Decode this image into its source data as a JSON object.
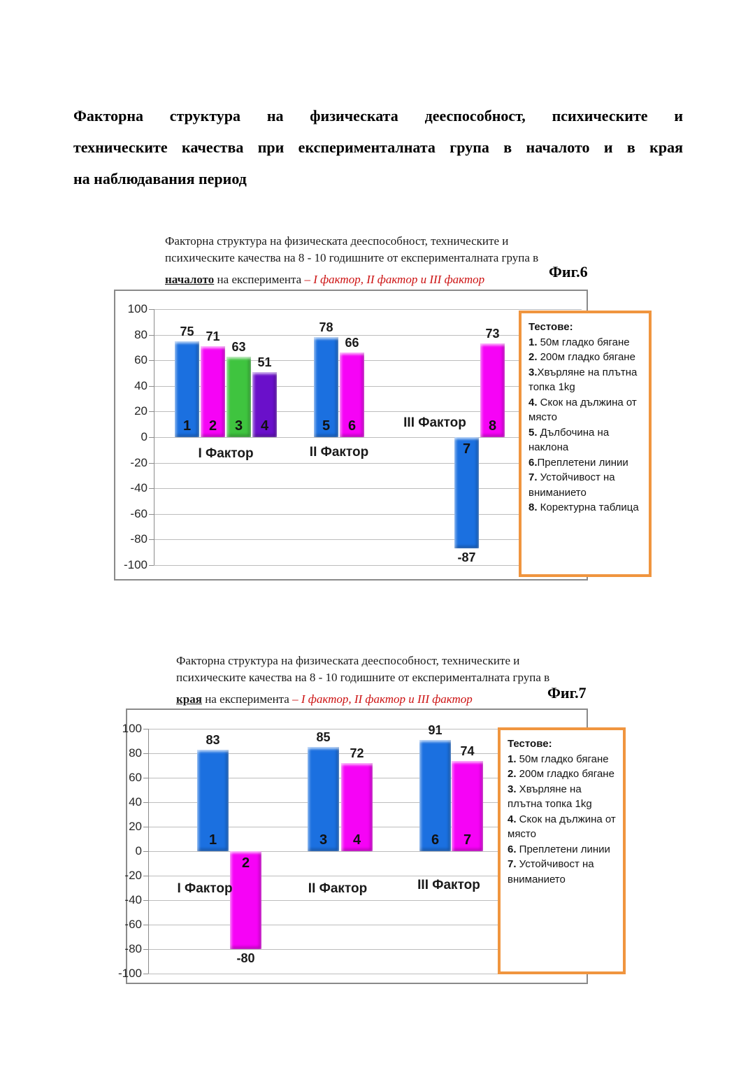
{
  "document": {
    "title_lines": [
      "Факторна структура на физическата дееспособност, психическите и",
      "техническите качества при експерименталната група в началото и в края",
      "на наблюдавания  период"
    ]
  },
  "fig6": {
    "caption": {
      "line1": "Факторна структура на физическата дееспособност, техническите и",
      "line2": "психическите качества на 8 - 10 годишните от експерименталната група в",
      "underlined": "началото",
      "middle": " на експеримента ",
      "red_italic": "– I фактор, II фактор и III фактор",
      "fig_label": "Фиг.6"
    },
    "legend": {
      "title": "Тестове:",
      "items": [
        {
          "num": "1.",
          "text": " 50м гладко бягане"
        },
        {
          "num": "2.",
          "text": " 200м гладко бягане"
        },
        {
          "num": "3.",
          "text": "Хвърляне на плътна топка 1kg"
        },
        {
          "num": "4.",
          "text": " Скок на дължина от място"
        },
        {
          "num": "5.",
          "text": " Дълбочина на наклона"
        },
        {
          "num": "6.",
          "text": "Преплетени линии"
        },
        {
          "num": "7.",
          "text": " Устойчивост на вниманието"
        },
        {
          "num": "8.",
          "text": " Коректурна таблица"
        }
      ]
    }
  },
  "fig7": {
    "caption": {
      "line1": "Факторна структура на физическата дееспособност, техническите и",
      "line2": "психическите качества на 8 - 10 годишните от експерименталната група  в",
      "underlined": "края",
      "middle": " на експеримента ",
      "red_italic": "– I фактор, II фактор и III фактор",
      "fig_label": "Фиг.7"
    },
    "legend": {
      "title": "Тестове:",
      "items": [
        {
          "num": "1.",
          "text": " 50м гладко бягане"
        },
        {
          "num": "2.",
          "text": " 200м гладко бягане"
        },
        {
          "num": "3.",
          "text": " Хвърляне на плътна топка 1kg"
        },
        {
          "num": "4.",
          "text": " Скок на дължина от място"
        },
        {
          "num": "6.",
          "text": " Преплетени линии"
        },
        {
          "num": "7.",
          "text": " Устойчивост на вниманието"
        }
      ]
    }
  },
  "chart_data": [
    {
      "type": "bar",
      "figure": "Фиг.6",
      "title": "Факторна структура на физическата дееспособност, техническите и психическите качества на 8 - 10 годишните от експерименталната група в началото на експеримента – I фактор, II фактор и III фактор",
      "ylim": [
        -100,
        100
      ],
      "ytick_step": 20,
      "grid": true,
      "legend_position": "right-overlay",
      "groups": [
        "I Фактор",
        "II Фактор",
        "III Фактор"
      ],
      "bars": [
        {
          "test": "1",
          "group": "I Фактор",
          "value": 75,
          "color": "#1b70e0"
        },
        {
          "test": "2",
          "group": "I Фактор",
          "value": 71,
          "color": "#f603f6"
        },
        {
          "test": "3",
          "group": "I Фактор",
          "value": 63,
          "color": "#3fc43f"
        },
        {
          "test": "4",
          "group": "I Фактор",
          "value": 51,
          "color": "#6a10ca"
        },
        {
          "test": "5",
          "group": "II Фактор",
          "value": 78,
          "color": "#1b70e0"
        },
        {
          "test": "6",
          "group": "II Фактор",
          "value": 66,
          "color": "#f603f6"
        },
        {
          "test": "7",
          "group": "III Фактор",
          "value": -87,
          "color": "#1b70e0"
        },
        {
          "test": "8",
          "group": "III Фактор",
          "value": 73,
          "color": "#f603f6"
        }
      ]
    },
    {
      "type": "bar",
      "figure": "Фиг.7",
      "title": "Факторна структура на физическата дееспособност, техническите и психическите качества на 8 - 10 годишните от експерименталната група в края на експеримента – I фактор, II фактор и III фактор",
      "ylim": [
        -100,
        100
      ],
      "ytick_step": 20,
      "grid": true,
      "legend_position": "right-overlay",
      "groups": [
        "I Фактор",
        "II Фактор",
        "III Фактор"
      ],
      "bars": [
        {
          "test": "1",
          "group": "I Фактор",
          "value": 83,
          "color": "#1b70e0"
        },
        {
          "test": "2",
          "group": "I Фактор",
          "value": -80,
          "color": "#f603f6"
        },
        {
          "test": "3",
          "group": "II Фактор",
          "value": 85,
          "color": "#1b70e0"
        },
        {
          "test": "4",
          "group": "II Фактор",
          "value": 72,
          "color": "#f603f6"
        },
        {
          "test": "6",
          "group": "III Фактор",
          "value": 91,
          "color": "#1b70e0"
        },
        {
          "test": "7",
          "group": "III Фактор",
          "value": 74,
          "color": "#f603f6"
        }
      ]
    }
  ],
  "colors": {
    "bar_blue": "#1b70e0",
    "bar_magenta": "#f603f6",
    "bar_green": "#3fc43f",
    "bar_purple": "#6a10ca",
    "legend_border": "#f0953f",
    "caption_red": "#cc1111",
    "gridline": "#bdbdbd",
    "chart_border": "#8a8a8a"
  }
}
